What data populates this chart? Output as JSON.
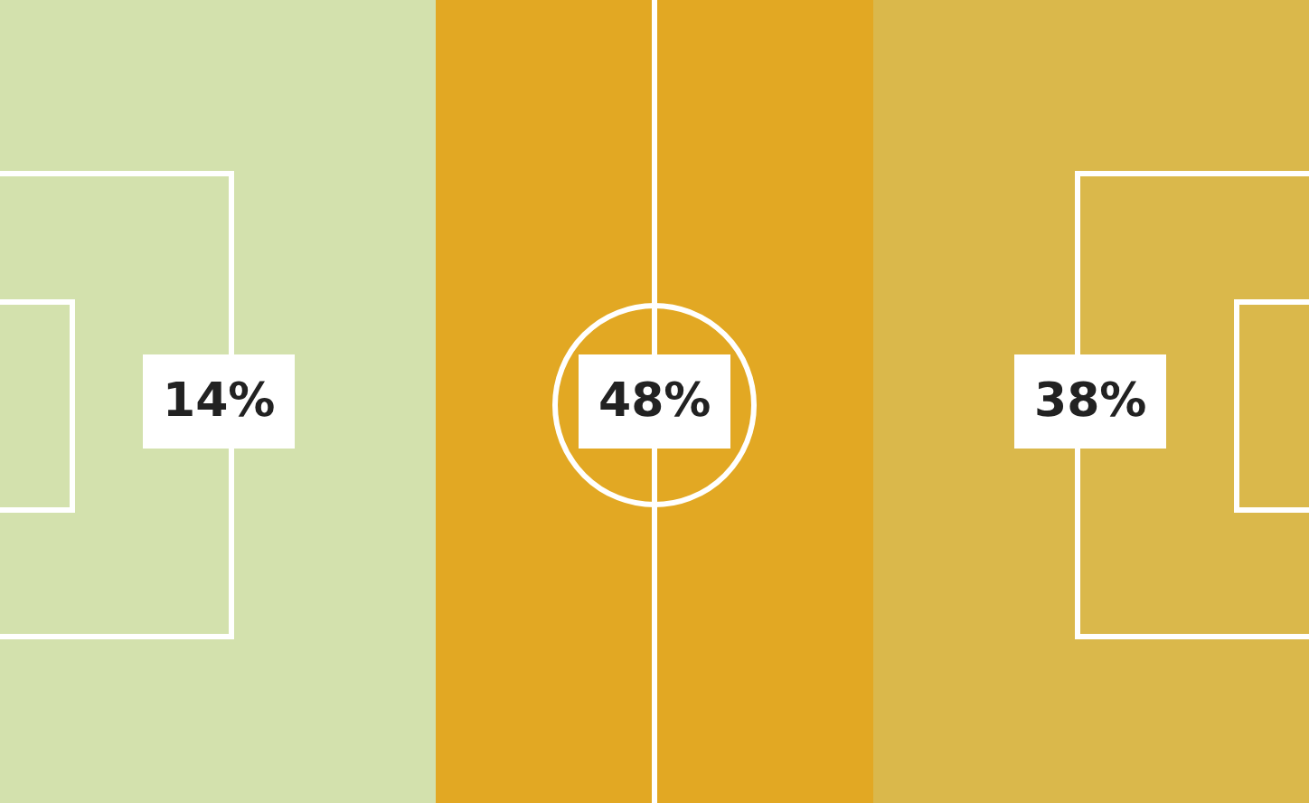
{
  "chart_data": {
    "type": "other",
    "categories": [
      null,
      null,
      null
    ],
    "values": [
      14,
      48,
      38
    ],
    "value_labels": [
      "14%",
      "48%",
      "38%"
    ],
    "colors": [
      "#d3e1ad",
      "#e2a823",
      "#dab84b"
    ]
  }
}
